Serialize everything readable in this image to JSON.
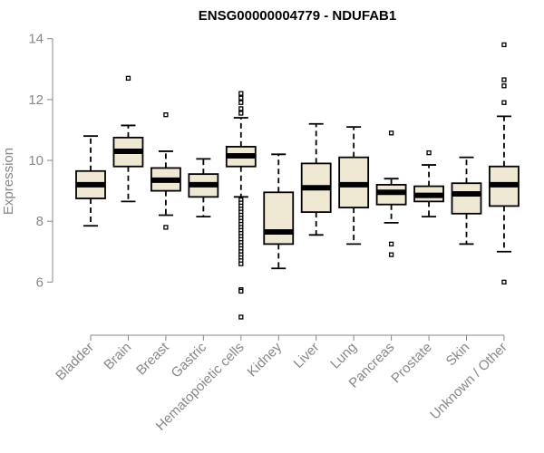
{
  "chart_data": {
    "type": "boxplot",
    "title": "ENSG00000004779 - NDUFAB1",
    "xlabel": "",
    "ylabel": "Expression",
    "ylim": [
      4.7,
      14.2
    ],
    "yticks": [
      6,
      8,
      10,
      12,
      14
    ],
    "colors": {
      "box_fill": "#efe8d2",
      "stroke": "#000000",
      "axis": "#888888",
      "label": "#888888"
    },
    "categories": [
      "Bladder",
      "Brain",
      "Breast",
      "Gastric",
      "Hematopoietic cells",
      "Kidney",
      "Liver",
      "Lung",
      "Pancreas",
      "Prostate",
      "Skin",
      "Unknown / Other"
    ],
    "boxes": [
      {
        "whisker_low": 7.85,
        "q1": 8.75,
        "median": 9.2,
        "q3": 9.65,
        "whisker_high": 10.8,
        "outliers": []
      },
      {
        "whisker_low": 8.65,
        "q1": 9.8,
        "median": 10.3,
        "q3": 10.75,
        "whisker_high": 11.15,
        "outliers": [
          12.7
        ]
      },
      {
        "whisker_low": 8.2,
        "q1": 9.0,
        "median": 9.35,
        "q3": 9.75,
        "whisker_high": 10.3,
        "outliers": [
          11.5,
          7.8
        ]
      },
      {
        "whisker_low": 8.15,
        "q1": 8.8,
        "median": 9.2,
        "q3": 9.55,
        "whisker_high": 10.05,
        "outliers": []
      },
      {
        "whisker_low": 8.8,
        "q1": 9.8,
        "median": 10.15,
        "q3": 10.45,
        "whisker_high": 11.4,
        "outliers": [
          12.2,
          12.05,
          11.9,
          11.7,
          11.55,
          8.7,
          8.6,
          8.5,
          8.4,
          8.3,
          8.2,
          8.1,
          8.0,
          7.9,
          7.8,
          7.7,
          7.6,
          7.5,
          7.4,
          7.3,
          7.2,
          7.1,
          7.0,
          6.9,
          6.8,
          6.7,
          6.6,
          5.75,
          5.7,
          4.85
        ]
      },
      {
        "whisker_low": 6.45,
        "q1": 7.25,
        "median": 7.65,
        "q3": 8.95,
        "whisker_high": 10.2,
        "outliers": []
      },
      {
        "whisker_low": 7.55,
        "q1": 8.3,
        "median": 9.1,
        "q3": 9.9,
        "whisker_high": 11.2,
        "outliers": []
      },
      {
        "whisker_low": 7.25,
        "q1": 8.45,
        "median": 9.2,
        "q3": 10.1,
        "whisker_high": 11.1,
        "outliers": []
      },
      {
        "whisker_low": 7.95,
        "q1": 8.55,
        "median": 8.95,
        "q3": 9.2,
        "whisker_high": 9.4,
        "outliers": [
          10.9,
          7.25,
          6.9
        ]
      },
      {
        "whisker_low": 8.15,
        "q1": 8.65,
        "median": 8.85,
        "q3": 9.15,
        "whisker_high": 9.85,
        "outliers": [
          10.25
        ]
      },
      {
        "whisker_low": 7.25,
        "q1": 8.25,
        "median": 8.9,
        "q3": 9.25,
        "whisker_high": 10.1,
        "outliers": []
      },
      {
        "whisker_low": 7.0,
        "q1": 8.5,
        "median": 9.2,
        "q3": 9.8,
        "whisker_high": 11.45,
        "outliers": [
          13.8,
          12.65,
          12.45,
          11.9,
          6.0
        ]
      }
    ]
  }
}
